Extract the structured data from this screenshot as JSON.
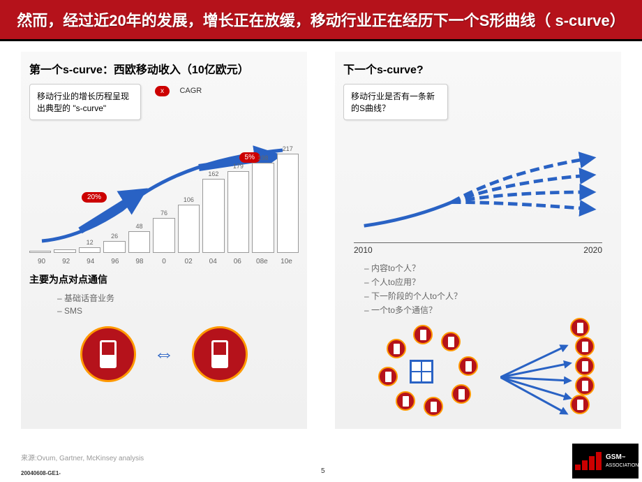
{
  "title": "然而，经过近20年的发展，增长正在放缓，移动行业正在经历下一个S形曲线（ s-curve）",
  "left": {
    "title": "第一个s-curve：西欧移动收入（10亿欧元）",
    "callout": "移动行业的增长历程呈现出典型的 \"s-curve\"",
    "cagr_label": "CAGR",
    "cagr_x": "x",
    "badges": {
      "b20": "20%",
      "b5": "5%"
    },
    "chart": {
      "years": [
        "90",
        "92",
        "94",
        "96",
        "98",
        "0",
        "02",
        "04",
        "06",
        "08e",
        "10e"
      ],
      "values": [
        5,
        7,
        12,
        26,
        48,
        76,
        106,
        162,
        179,
        198,
        217
      ],
      "max": 230,
      "curve_color": "#2962c4",
      "bar_fill": "#ffffff",
      "bar_stroke": "#999999"
    },
    "sub_title": "主要为点对点通信",
    "bullets": [
      "– 基础话音业务",
      "– SMS"
    ]
  },
  "right": {
    "title": "下一个s-curve?",
    "callout": "移动行业是否有一条新的S曲线？",
    "axis": {
      "start": "2010",
      "end": "2020"
    },
    "bullets": [
      "– 内容to个人？",
      "– 个人to应用？",
      "– 下一阶段的个人to个人？",
      "– 一个to多个通信？"
    ],
    "arrow_color": "#2962c4",
    "node_color": "#b5121b",
    "node_border": "#ff9900"
  },
  "source": "来源:Ovum, Gartner, McKinsey analysis",
  "footer": "20040608-GE1-",
  "page": "5",
  "logo": {
    "brand": "GSM",
    "sub": "ASSOCIATION",
    "tm": "™"
  }
}
